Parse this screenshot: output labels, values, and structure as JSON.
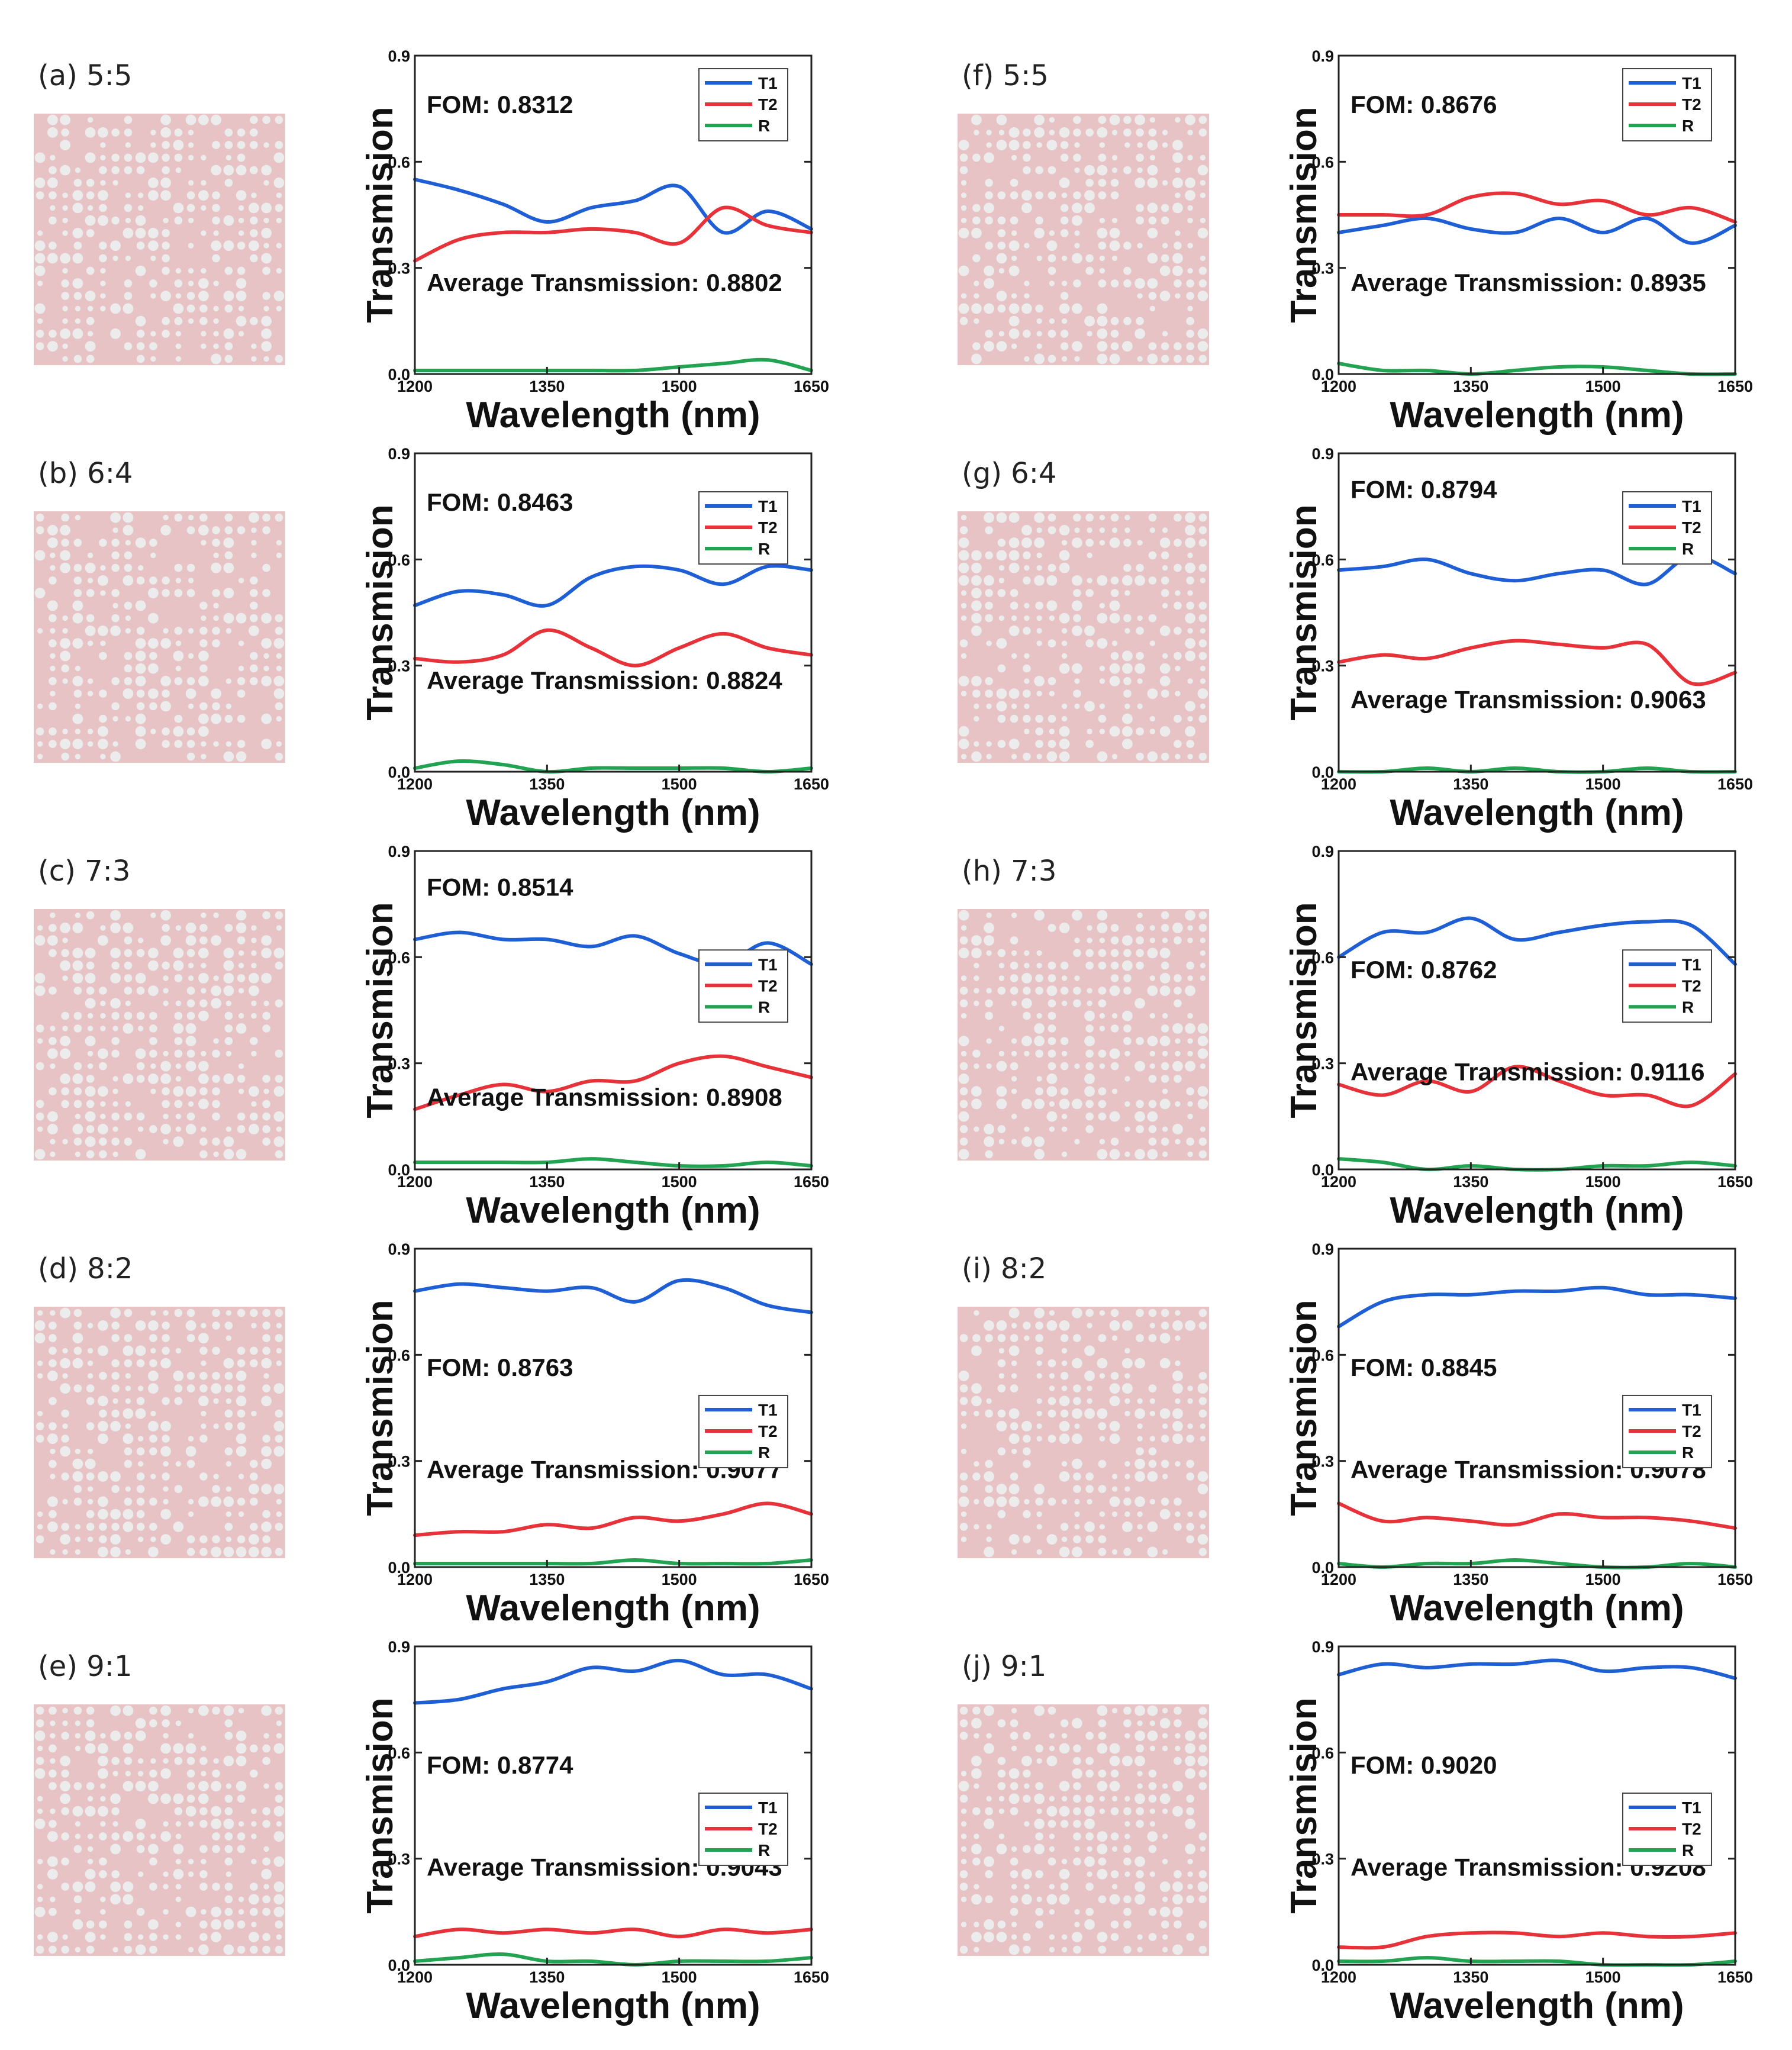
{
  "colors": {
    "T1": "#1f5fd6",
    "T2": "#e8323a",
    "R": "#22a352",
    "pattern_background": "#e7c3c5",
    "pattern_hole": "#ececec"
  },
  "chart_data": [
    {
      "type": "line",
      "panel": "(a) 5:5",
      "title": "",
      "xlabel": "Wavelength (nm)",
      "ylabel": "Transmision",
      "xlim": [
        1200,
        1650
      ],
      "ylim": [
        0,
        0.9
      ],
      "xticks": [
        "1200",
        "1350",
        "1500",
        "1650"
      ],
      "yticks": [
        "0.0",
        "0.3",
        "0.6",
        "0.9"
      ],
      "fom": "FOM: 0.8312",
      "avg": "Average Transmission: 0.8802",
      "legend": [
        "T1",
        "T2",
        "R"
      ],
      "x": [
        1200,
        1250,
        1300,
        1350,
        1400,
        1450,
        1500,
        1550,
        1600,
        1650
      ],
      "series": [
        {
          "name": "T1",
          "values": [
            0.55,
            0.52,
            0.48,
            0.43,
            0.47,
            0.49,
            0.53,
            0.4,
            0.46,
            0.41
          ]
        },
        {
          "name": "T2",
          "values": [
            0.32,
            0.38,
            0.4,
            0.4,
            0.41,
            0.4,
            0.37,
            0.47,
            0.42,
            0.4
          ]
        },
        {
          "name": "R",
          "values": [
            0.01,
            0.01,
            0.01,
            0.01,
            0.01,
            0.01,
            0.02,
            0.03,
            0.04,
            0.01
          ]
        }
      ]
    },
    {
      "type": "line",
      "panel": "(b) 6:4",
      "title": "",
      "xlabel": "Wavelength (nm)",
      "ylabel": "Transmision",
      "xlim": [
        1200,
        1650
      ],
      "ylim": [
        0,
        0.9
      ],
      "xticks": [
        "1200",
        "1350",
        "1500",
        "1650"
      ],
      "yticks": [
        "0.0",
        "0.3",
        "0.6",
        "0.9"
      ],
      "fom": "FOM: 0.8463",
      "avg": "Average Transmission: 0.8824",
      "legend": [
        "T1",
        "T2",
        "R"
      ],
      "x": [
        1200,
        1250,
        1300,
        1350,
        1400,
        1450,
        1500,
        1550,
        1600,
        1650
      ],
      "series": [
        {
          "name": "T1",
          "values": [
            0.47,
            0.51,
            0.5,
            0.47,
            0.55,
            0.58,
            0.57,
            0.53,
            0.58,
            0.57
          ]
        },
        {
          "name": "T2",
          "values": [
            0.32,
            0.31,
            0.33,
            0.4,
            0.35,
            0.3,
            0.35,
            0.39,
            0.35,
            0.33
          ]
        },
        {
          "name": "R",
          "values": [
            0.01,
            0.03,
            0.02,
            0.0,
            0.01,
            0.01,
            0.01,
            0.01,
            0.0,
            0.01
          ]
        }
      ]
    },
    {
      "type": "line",
      "panel": "(c) 7:3",
      "title": "",
      "xlabel": "Wavelength (nm)",
      "ylabel": "Transmision",
      "xlim": [
        1200,
        1650
      ],
      "ylim": [
        0,
        0.9
      ],
      "xticks": [
        "1200",
        "1350",
        "1500",
        "1650"
      ],
      "yticks": [
        "0.0",
        "0.3",
        "0.6",
        "0.9"
      ],
      "fom": "FOM: 0.8514",
      "avg": "Average Transmission: 0.8908",
      "legend": [
        "T1",
        "T2",
        "R"
      ],
      "x": [
        1200,
        1250,
        1300,
        1350,
        1400,
        1450,
        1500,
        1550,
        1600,
        1650
      ],
      "series": [
        {
          "name": "T1",
          "values": [
            0.65,
            0.67,
            0.65,
            0.65,
            0.63,
            0.66,
            0.61,
            0.58,
            0.64,
            0.58
          ]
        },
        {
          "name": "T2",
          "values": [
            0.17,
            0.21,
            0.24,
            0.22,
            0.25,
            0.25,
            0.3,
            0.32,
            0.29,
            0.26
          ]
        },
        {
          "name": "R",
          "values": [
            0.02,
            0.02,
            0.02,
            0.02,
            0.03,
            0.02,
            0.01,
            0.01,
            0.02,
            0.01
          ]
        }
      ]
    },
    {
      "type": "line",
      "panel": "(d) 8:2",
      "title": "",
      "xlabel": "Wavelength (nm)",
      "ylabel": "Transmision",
      "xlim": [
        1200,
        1650
      ],
      "ylim": [
        0,
        0.9
      ],
      "xticks": [
        "1200",
        "1350",
        "1500",
        "1650"
      ],
      "yticks": [
        "0.0",
        "0.3",
        "0.6",
        "0.9"
      ],
      "fom": "FOM: 0.8763",
      "avg": "Average Transmission: 0.9077",
      "legend": [
        "T1",
        "T2",
        "R"
      ],
      "x": [
        1200,
        1250,
        1300,
        1350,
        1400,
        1450,
        1500,
        1550,
        1600,
        1650
      ],
      "series": [
        {
          "name": "T1",
          "values": [
            0.78,
            0.8,
            0.79,
            0.78,
            0.79,
            0.75,
            0.81,
            0.79,
            0.74,
            0.72
          ]
        },
        {
          "name": "T2",
          "values": [
            0.09,
            0.1,
            0.1,
            0.12,
            0.11,
            0.14,
            0.13,
            0.15,
            0.18,
            0.15
          ]
        },
        {
          "name": "R",
          "values": [
            0.01,
            0.01,
            0.01,
            0.01,
            0.01,
            0.02,
            0.01,
            0.01,
            0.01,
            0.02
          ]
        }
      ]
    },
    {
      "type": "line",
      "panel": "(e) 9:1",
      "title": "",
      "xlabel": "Wavelength (nm)",
      "ylabel": "Transmision",
      "xlim": [
        1200,
        1650
      ],
      "ylim": [
        0,
        0.9
      ],
      "xticks": [
        "1200",
        "1350",
        "1500",
        "1650"
      ],
      "yticks": [
        "0.0",
        "0.3",
        "0.6",
        "0.9"
      ],
      "fom": "FOM: 0.8774",
      "avg": "Average Transmission: 0.9043",
      "legend": [
        "T1",
        "T2",
        "R"
      ],
      "x": [
        1200,
        1250,
        1300,
        1350,
        1400,
        1450,
        1500,
        1550,
        1600,
        1650
      ],
      "series": [
        {
          "name": "T1",
          "values": [
            0.74,
            0.75,
            0.78,
            0.8,
            0.84,
            0.83,
            0.86,
            0.82,
            0.82,
            0.78
          ]
        },
        {
          "name": "T2",
          "values": [
            0.08,
            0.1,
            0.09,
            0.1,
            0.09,
            0.1,
            0.08,
            0.1,
            0.09,
            0.1
          ]
        },
        {
          "name": "R",
          "values": [
            0.01,
            0.02,
            0.03,
            0.01,
            0.01,
            0.0,
            0.01,
            0.01,
            0.01,
            0.02
          ]
        }
      ]
    },
    {
      "type": "line",
      "panel": "(f) 5:5",
      "title": "",
      "xlabel": "Wavelength (nm)",
      "ylabel": "Transmision",
      "xlim": [
        1200,
        1650
      ],
      "ylim": [
        0,
        0.9
      ],
      "xticks": [
        "1200",
        "1350",
        "1500",
        "1650"
      ],
      "yticks": [
        "0.0",
        "0.3",
        "0.6",
        "0.9"
      ],
      "fom": "FOM: 0.8676",
      "avg": "Average Transmission: 0.8935",
      "legend": [
        "T1",
        "T2",
        "R"
      ],
      "x": [
        1200,
        1250,
        1300,
        1350,
        1400,
        1450,
        1500,
        1550,
        1600,
        1650
      ],
      "series": [
        {
          "name": "T1",
          "values": [
            0.4,
            0.42,
            0.44,
            0.41,
            0.4,
            0.44,
            0.4,
            0.44,
            0.37,
            0.42
          ]
        },
        {
          "name": "T2",
          "values": [
            0.45,
            0.45,
            0.45,
            0.5,
            0.51,
            0.48,
            0.49,
            0.45,
            0.47,
            0.43
          ]
        },
        {
          "name": "R",
          "values": [
            0.03,
            0.01,
            0.01,
            0.0,
            0.01,
            0.02,
            0.02,
            0.01,
            0.0,
            0.0
          ]
        }
      ]
    },
    {
      "type": "line",
      "panel": "(g) 6:4",
      "title": "",
      "xlabel": "Wavelength (nm)",
      "ylabel": "Transmision",
      "xlim": [
        1200,
        1650
      ],
      "ylim": [
        0,
        0.9
      ],
      "xticks": [
        "1200",
        "1350",
        "1500",
        "1650"
      ],
      "yticks": [
        "0.0",
        "0.3",
        "0.6",
        "0.9"
      ],
      "fom": "FOM: 0.8794",
      "avg": "Average Transmission: 0.9063",
      "legend": [
        "T1",
        "T2",
        "R"
      ],
      "x": [
        1200,
        1250,
        1300,
        1350,
        1400,
        1450,
        1500,
        1550,
        1600,
        1650
      ],
      "series": [
        {
          "name": "T1",
          "values": [
            0.57,
            0.58,
            0.6,
            0.56,
            0.54,
            0.56,
            0.57,
            0.53,
            0.61,
            0.56
          ]
        },
        {
          "name": "T2",
          "values": [
            0.31,
            0.33,
            0.32,
            0.35,
            0.37,
            0.36,
            0.35,
            0.36,
            0.25,
            0.28
          ]
        },
        {
          "name": "R",
          "values": [
            0.0,
            0.0,
            0.01,
            0.0,
            0.01,
            0.0,
            0.0,
            0.01,
            0.0,
            0.0
          ]
        }
      ]
    },
    {
      "type": "line",
      "panel": "(h) 7:3",
      "title": "",
      "xlabel": "Wavelength (nm)",
      "ylabel": "Transmision",
      "xlim": [
        1200,
        1650
      ],
      "ylim": [
        0,
        0.9
      ],
      "xticks": [
        "1200",
        "1350",
        "1500",
        "1650"
      ],
      "yticks": [
        "0.0",
        "0.3",
        "0.6",
        "0.9"
      ],
      "fom": "FOM: 0.8762",
      "avg": "Average Transmission: 0.9116",
      "legend": [
        "T1",
        "T2",
        "R"
      ],
      "x": [
        1200,
        1250,
        1300,
        1350,
        1400,
        1450,
        1500,
        1550,
        1600,
        1650
      ],
      "series": [
        {
          "name": "T1",
          "values": [
            0.6,
            0.67,
            0.67,
            0.71,
            0.65,
            0.67,
            0.69,
            0.7,
            0.69,
            0.58
          ]
        },
        {
          "name": "T2",
          "values": [
            0.24,
            0.21,
            0.25,
            0.22,
            0.29,
            0.25,
            0.21,
            0.21,
            0.18,
            0.27
          ]
        },
        {
          "name": "R",
          "values": [
            0.03,
            0.02,
            0.0,
            0.01,
            0.0,
            0.0,
            0.01,
            0.01,
            0.02,
            0.01
          ]
        }
      ]
    },
    {
      "type": "line",
      "panel": "(i) 8:2",
      "title": "",
      "xlabel": "Wavelength (nm)",
      "ylabel": "Transmision",
      "xlim": [
        1200,
        1650
      ],
      "ylim": [
        0,
        0.9
      ],
      "xticks": [
        "1200",
        "1350",
        "1500",
        "1650"
      ],
      "yticks": [
        "0.0",
        "0.3",
        "0.6",
        "0.9"
      ],
      "fom": "FOM: 0.8845",
      "avg": "Average Transmission: 0.9078",
      "legend": [
        "T1",
        "T2",
        "R"
      ],
      "x": [
        1200,
        1250,
        1300,
        1350,
        1400,
        1450,
        1500,
        1550,
        1600,
        1650
      ],
      "series": [
        {
          "name": "T1",
          "values": [
            0.68,
            0.75,
            0.77,
            0.77,
            0.78,
            0.78,
            0.79,
            0.77,
            0.77,
            0.76
          ]
        },
        {
          "name": "T2",
          "values": [
            0.18,
            0.13,
            0.14,
            0.13,
            0.12,
            0.15,
            0.14,
            0.14,
            0.13,
            0.11
          ]
        },
        {
          "name": "R",
          "values": [
            0.01,
            0.0,
            0.01,
            0.01,
            0.02,
            0.01,
            0.0,
            0.0,
            0.01,
            0.0
          ]
        }
      ]
    },
    {
      "type": "line",
      "panel": "(j) 9:1",
      "title": "",
      "xlabel": "Wavelength (nm)",
      "ylabel": "Transmision",
      "xlim": [
        1200,
        1650
      ],
      "ylim": [
        0,
        0.9
      ],
      "xticks": [
        "1200",
        "1350",
        "1500",
        "1650"
      ],
      "yticks": [
        "0.0",
        "0.3",
        "0.6",
        "0.9"
      ],
      "fom": "FOM: 0.9020",
      "avg": "Average Transmission: 0.9208",
      "legend": [
        "T1",
        "T2",
        "R"
      ],
      "x": [
        1200,
        1250,
        1300,
        1350,
        1400,
        1450,
        1500,
        1550,
        1600,
        1650
      ],
      "series": [
        {
          "name": "T1",
          "values": [
            0.82,
            0.85,
            0.84,
            0.85,
            0.85,
            0.86,
            0.83,
            0.84,
            0.84,
            0.81
          ]
        },
        {
          "name": "T2",
          "values": [
            0.05,
            0.05,
            0.08,
            0.09,
            0.09,
            0.08,
            0.09,
            0.08,
            0.08,
            0.09
          ]
        },
        {
          "name": "R",
          "values": [
            0.01,
            0.01,
            0.02,
            0.01,
            0.01,
            0.01,
            0.0,
            0.0,
            0.0,
            0.01
          ]
        }
      ]
    }
  ]
}
